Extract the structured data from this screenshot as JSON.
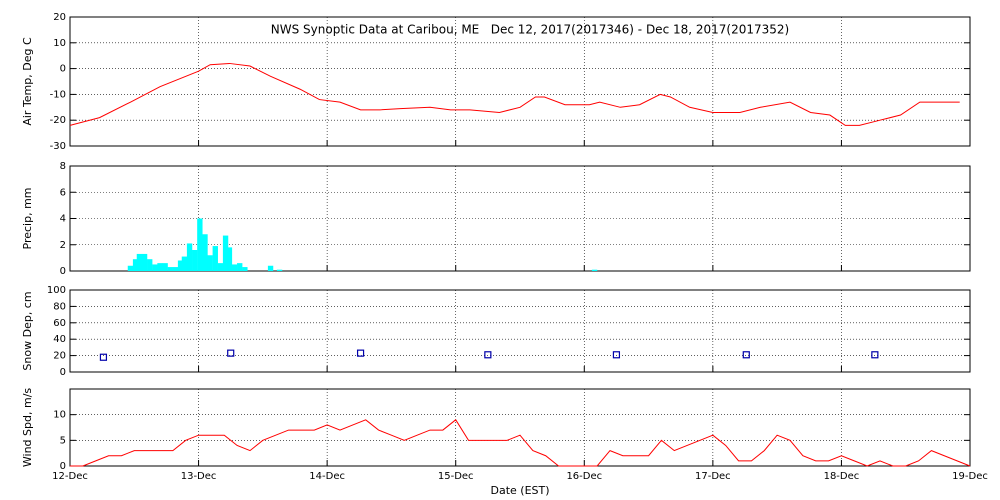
{
  "title": "NWS Synoptic Data at Caribou, ME   Dec 12, 2017(2017346) - Dec 18, 2017(2017352)",
  "chart_data": [
    {
      "type": "line",
      "y_label": "Air Temp, Deg C",
      "color": "#ff0000",
      "x": [
        0,
        0.23,
        0.47,
        0.7,
        1.0,
        1.09,
        1.24,
        1.4,
        1.56,
        1.79,
        1.94,
        2.1,
        2.26,
        2.41,
        2.57,
        2.8,
        2.96,
        3.11,
        3.34,
        3.5,
        3.62,
        3.69,
        3.85,
        4.04,
        4.12,
        4.28,
        4.43,
        4.59,
        4.67,
        4.82,
        5.0,
        5.21,
        5.37,
        5.6,
        5.76,
        5.91,
        6.03,
        6.14,
        6.3,
        6.46,
        6.61,
        6.92
      ],
      "values": [
        -22,
        -19,
        -13,
        -7,
        -1,
        1.5,
        2,
        1,
        -3,
        -8,
        -12,
        -13,
        -16,
        -16,
        -15.5,
        -15,
        -16,
        -16,
        -17,
        -15,
        -11,
        -11,
        -14,
        -14,
        -13,
        -15,
        -14,
        -10,
        -11,
        -15,
        -17,
        -17,
        -15,
        -13,
        -17,
        -18,
        -22,
        -22,
        -20,
        -18,
        -13,
        -13
      ],
      "xlim": [
        0,
        7
      ],
      "ylim": [
        -30,
        20
      ],
      "yticks": [
        -30,
        -20,
        -10,
        0,
        10,
        20
      ],
      "xticks": [
        0,
        1,
        2,
        3,
        4,
        5,
        6,
        7
      ],
      "grid": true
    },
    {
      "type": "bar",
      "y_label": "Precip, mm",
      "color": "#00ffff",
      "x": [
        0.47,
        0.51,
        0.54,
        0.58,
        0.62,
        0.66,
        0.7,
        0.74,
        0.78,
        0.82,
        0.86,
        0.89,
        0.93,
        0.97,
        1.01,
        1.05,
        1.09,
        1.13,
        1.17,
        1.21,
        1.24,
        1.28,
        1.32,
        1.36,
        1.56,
        1.63,
        4.08
      ],
      "values": [
        0.4,
        0.9,
        1.3,
        1.3,
        0.9,
        0.5,
        0.6,
        0.6,
        0.3,
        0.3,
        0.8,
        1.1,
        2.1,
        1.6,
        4.0,
        2.8,
        1.2,
        1.9,
        0.6,
        2.7,
        1.8,
        0.5,
        0.6,
        0.3,
        0.4,
        0.1,
        0.1
      ],
      "xlim": [
        0,
        7
      ],
      "ylim": [
        0,
        8
      ],
      "yticks": [
        0,
        2,
        4,
        6,
        8
      ],
      "xticks": [
        0,
        1,
        2,
        3,
        4,
        5,
        6,
        7
      ],
      "grid": true
    },
    {
      "type": "scatter",
      "y_label": "Snow Dep, cm",
      "color": "#0000aa",
      "x": [
        0.26,
        1.25,
        2.26,
        3.25,
        4.25,
        5.26,
        6.26
      ],
      "values": [
        18,
        23,
        23,
        21,
        21,
        21,
        21
      ],
      "xlim": [
        0,
        7
      ],
      "ylim": [
        0,
        100
      ],
      "yticks": [
        0,
        20,
        40,
        60,
        80,
        100
      ],
      "xticks": [
        0,
        1,
        2,
        3,
        4,
        5,
        6,
        7
      ],
      "grid": true
    },
    {
      "type": "line",
      "y_label": "Wind Spd, m/s",
      "x_label": "Date (EST)",
      "color": "#ff0000",
      "x": [
        0,
        0.1,
        0.2,
        0.3,
        0.4,
        0.5,
        0.6,
        0.7,
        0.8,
        0.9,
        1.0,
        1.1,
        1.2,
        1.3,
        1.4,
        1.5,
        1.6,
        1.7,
        1.8,
        1.9,
        2.0,
        2.1,
        2.2,
        2.3,
        2.4,
        2.5,
        2.6,
        2.7,
        2.8,
        2.9,
        3.0,
        3.1,
        3.2,
        3.3,
        3.4,
        3.5,
        3.6,
        3.7,
        3.8,
        3.9,
        4.0,
        4.1,
        4.2,
        4.3,
        4.4,
        4.5,
        4.6,
        4.7,
        4.8,
        4.9,
        5.0,
        5.1,
        5.2,
        5.3,
        5.4,
        5.5,
        5.6,
        5.7,
        5.8,
        5.9,
        6.0,
        6.1,
        6.2,
        6.3,
        6.4,
        6.5,
        6.6,
        6.7,
        6.8,
        6.9,
        7.0
      ],
      "values": [
        0,
        0,
        1,
        2,
        2,
        3,
        3,
        3,
        3,
        5,
        6,
        6,
        6,
        4,
        3,
        5,
        6,
        7,
        7,
        7,
        8,
        7,
        8,
        9,
        7,
        6,
        5,
        6,
        7,
        7,
        9,
        5,
        5,
        5,
        5,
        6,
        3,
        2,
        0,
        0,
        0,
        0,
        3,
        2,
        2,
        2,
        5,
        3,
        4,
        5,
        6,
        4,
        1,
        1,
        3,
        6,
        5,
        2,
        1,
        1,
        2,
        1,
        0,
        1,
        0,
        0,
        1,
        3,
        2,
        1,
        0
      ],
      "xlim": [
        0,
        7
      ],
      "ylim": [
        0,
        15
      ],
      "yticks": [
        0,
        5,
        10
      ],
      "xticks": [
        {
          "value": 0,
          "label": "12-Dec"
        },
        {
          "value": 1,
          "label": "13-Dec"
        },
        {
          "value": 2,
          "label": "14-Dec"
        },
        {
          "value": 3,
          "label": "15-Dec"
        },
        {
          "value": 4,
          "label": "16-Dec"
        },
        {
          "value": 5,
          "label": "17-Dec"
        },
        {
          "value": 6,
          "label": "18-Dec"
        },
        {
          "value": 7,
          "label": "19-Dec"
        }
      ],
      "grid": true
    }
  ]
}
